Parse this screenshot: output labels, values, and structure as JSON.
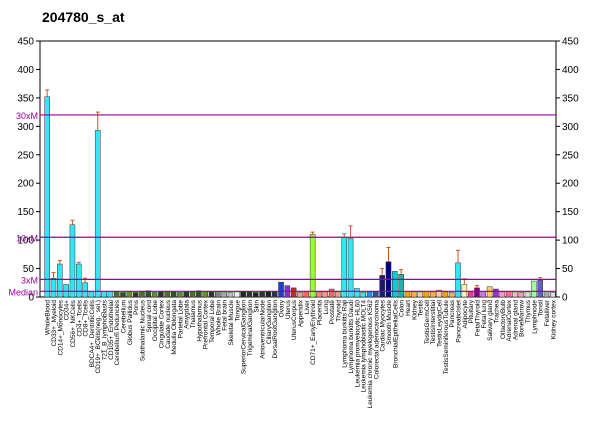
{
  "chart_data": {
    "type": "bar",
    "title": "204780_s_at",
    "categories": [
      "WholeBlood",
      "CD33+_Myeloid",
      "CD14+_Monocytes",
      "CD34+",
      "CD56+_NKCells",
      "CD4+_Tcells",
      "CD8+_Tcells",
      "BDCA4+_DentriticCells",
      "CD19+_BCells(neg._sel.)",
      "721_B_lymphoblasts",
      "CD105+_Endothelial",
      "Cerebellum Peduncles",
      "Cerebellum",
      "Globus Pallidus",
      "Pons",
      "Subthalamic Nucleus",
      "Spinal cord",
      "Occipital Lobe",
      "Cingulate Cortex",
      "Caudate nucleus",
      "Medulla Oblongata",
      "Parietal Lobe",
      "Amygdala",
      "Thalamus",
      "Hypothalamus",
      "Prefrontal Cortex",
      "Temporal Lobe",
      "Whole Brain",
      "Fetal brain",
      "Skeletal Muscle",
      "Tongue",
      "SuperiorCervicalGanglion",
      "TrigeminalGanglion",
      "Skin",
      "AtrioventricularNode",
      "CiliaryGanglion",
      "DorsalRootGanglion",
      "Ovary",
      "Uterus",
      "UterusCorpus",
      "Appendix",
      "Liver",
      "CD71+_EarlyErythroid",
      "Placenta",
      "Lung",
      "Prostate",
      "Thyroid",
      "Lymphoma burkitts Raji",
      "Lymphoma burkitts Daudi",
      "Leukemia promyelocytic HL60",
      "Leukemia lymphoblastic MOLT4",
      "Leukemia chronic myelogenous K562",
      "Colorectal adenocarcinoma",
      "Cardiac Myocytes",
      "Smooth Muscle",
      "BronchialEpithelialCells",
      "Colon",
      "Heart",
      "Kidney",
      "Testis",
      "TestisGermCell",
      "TestisInterstitial",
      "TestisLeydigCell",
      "TestisSeminiferousTubule",
      "Pancreas",
      "PancreaticIslet",
      "Adipocyte",
      "Pituitary",
      "FetalThyroid",
      "Fetal lung",
      "Salivary gland",
      "Trachea",
      "OlfactoryBulb",
      "AdrenalCortex",
      "Adrenal gland",
      "BoneMarrow",
      "Thymus",
      "Lymphnode",
      "Tonsil",
      "Fetalliver",
      "Kidney cortex"
    ],
    "series": [
      {
        "name": "204780_s_at",
        "values": [
          352,
          33,
          58,
          22,
          127,
          58,
          25,
          10,
          293,
          10,
          10,
          9,
          8,
          10,
          8,
          9,
          11,
          8,
          9,
          10,
          9,
          8,
          10,
          9,
          11,
          10,
          9,
          10,
          9,
          8,
          9,
          10,
          9,
          8,
          9,
          10,
          9,
          26,
          20,
          16,
          8,
          9,
          110,
          9,
          9,
          14,
          9,
          105,
          103,
          15,
          8,
          9,
          10,
          38,
          62,
          45,
          40,
          10,
          9,
          9,
          10,
          9,
          12,
          9,
          8,
          60,
          22,
          9,
          16,
          10,
          18,
          14,
          9,
          10,
          9,
          8,
          9,
          28,
          30,
          10,
          8
        ],
        "errors": [
          12,
          10,
          6,
          null,
          8,
          3,
          8,
          null,
          32,
          null,
          null,
          null,
          null,
          null,
          null,
          null,
          null,
          null,
          null,
          null,
          null,
          null,
          null,
          null,
          null,
          null,
          null,
          null,
          null,
          null,
          null,
          null,
          null,
          null,
          null,
          null,
          null,
          null,
          null,
          null,
          null,
          null,
          4,
          null,
          null,
          null,
          null,
          6,
          22,
          null,
          null,
          null,
          null,
          12,
          25,
          null,
          8,
          null,
          null,
          null,
          null,
          null,
          null,
          null,
          null,
          22,
          10,
          null,
          4,
          null,
          null,
          null,
          null,
          null,
          null,
          null,
          null,
          null,
          4,
          null,
          null
        ],
        "colors": [
          "#33e6f5",
          "#33e6f5",
          "#33e6f5",
          "#33e6f5",
          "#33e6f5",
          "#33e6f5",
          "#33e6f5",
          "#33e6f5",
          "#33e6f5",
          "#33e6f5",
          "#33e6f5",
          "#556b2f",
          "#2f4f2f",
          "#6b8e23",
          "#333333",
          "#556b2f",
          "#2f4f2f",
          "#6b8e23",
          "#333333",
          "#556b2f",
          "#2f4f2f",
          "#6b8e23",
          "#333333",
          "#556b2f",
          "#2f4f2f",
          "#6b8e23",
          "#333333",
          "#808080",
          "#a9a9a9",
          "#c0c0c0",
          "#eeeeee",
          "#222222",
          "#333333",
          "#222222",
          "#333333",
          "#222222",
          "#333333",
          "#1f3fcf",
          "#8a2be2",
          "#c62828",
          "#ff9999",
          "#ff6666",
          "#99ff33",
          "#ff7f7f",
          "#ff9999",
          "#ff6666",
          "#ff9999",
          "#33e6f5",
          "#33e6f5",
          "#33e6f5",
          "#33e6f5",
          "#1e90ff",
          "#2f4f8f",
          "#191970",
          "#00008b",
          "#00ced1",
          "#20b2aa",
          "#ffa500",
          "#ffb347",
          "#ffcc99",
          "#ffa500",
          "#ffb347",
          "#ffcc99",
          "#ffa500",
          "#ffb347",
          "#33e6f5",
          "#fff5b0",
          "#ff3399",
          "#800080",
          "#da70d6",
          "#ffcc66",
          "#9932cc",
          "#ff99cc",
          "#ff6699",
          "#ffb6c1",
          "#ff99cc",
          "#dddddd",
          "#a0ffa0",
          "#6a5acd",
          "#aaaaaa",
          "#dddddd"
        ]
      }
    ],
    "reference_lines": [
      {
        "label": "30xM",
        "value": 320
      },
      {
        "label": "10xM",
        "value": 105
      },
      {
        "label": "3xM",
        "value": 31
      },
      {
        "label": "Median",
        "value": 10
      }
    ],
    "ylim": [
      0,
      450
    ],
    "yticks": [
      0,
      50,
      100,
      150,
      200,
      250,
      300,
      350,
      400,
      450
    ]
  }
}
